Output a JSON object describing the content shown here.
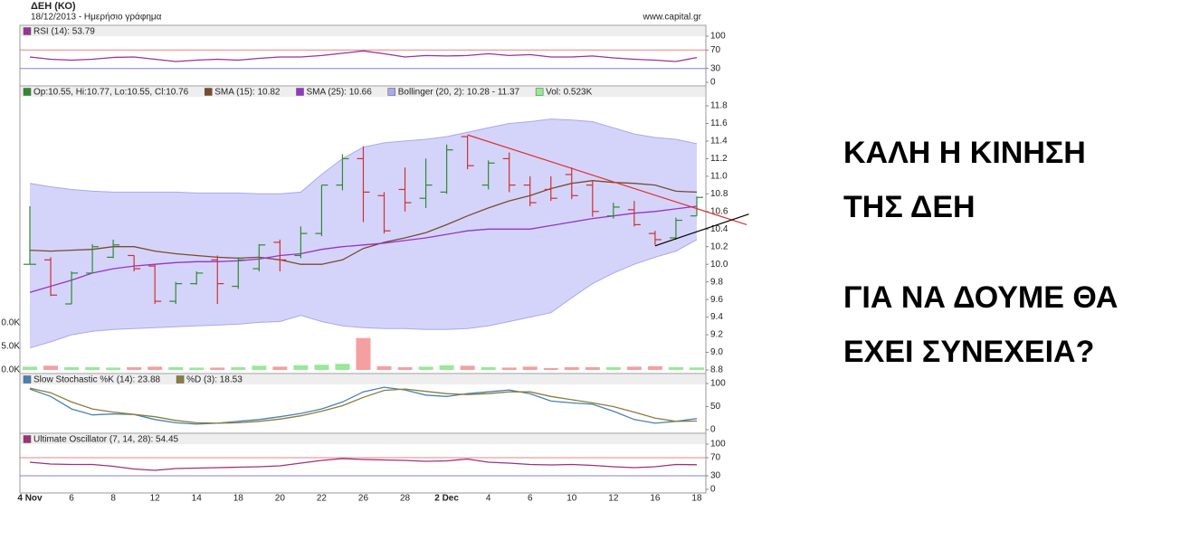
{
  "header": {
    "title": "ΔΕΗ (ΚΟ)",
    "subtitle": "18/12/2013 - Ημερήσιο γράφημα",
    "source": "www.capital.gr"
  },
  "annotations": [
    "ΚΑΛΗ Η ΚΙΝΗΣΗ",
    "ΤΗΣ ΔΕΗ",
    "ΓΙΑ ΝΑ ΔΟΥΜΕ ΘΑ",
    "ΕΧΕΙ ΣΥΝΕΧΕΙΑ?"
  ],
  "chart_data": [
    {
      "type": "line",
      "ylim": [
        0,
        100
      ],
      "yticks": [
        0,
        30,
        70,
        100
      ],
      "ref_lines": [
        {
          "value": 70,
          "color": "#f08080"
        },
        {
          "value": 30,
          "color": "#8080f0"
        }
      ],
      "series": [
        {
          "name": "RSI (14): 53.79",
          "color": "#993399",
          "values": [
            55,
            50,
            48,
            50,
            54,
            55,
            50,
            45,
            48,
            50,
            48,
            52,
            55,
            55,
            58,
            63,
            68,
            62,
            55,
            58,
            57,
            58,
            62,
            58,
            60,
            55,
            55,
            57,
            53,
            50,
            48,
            45,
            53.79
          ]
        }
      ]
    },
    {
      "type": "ohlc",
      "ylim": [
        8.8,
        11.8
      ],
      "yticks": [
        8.8,
        {
          "value": 9,
          "label": "9.0"
        },
        9.2,
        9.4,
        9.6,
        9.8,
        {
          "value": 10,
          "label": "10.0"
        },
        10.2,
        10.4,
        10.6,
        10.8,
        {
          "value": 11,
          "label": "11.0"
        },
        11.2,
        11.4,
        11.6,
        11.8
      ],
      "ohlc": {
        "name": "Op:10.55, Hi:10.77, Lo:10.55, Cl:10.76",
        "up_color": "#2e8b2e",
        "down_color": "#d03030",
        "open": [
          10.0,
          10.05,
          9.55,
          9.9,
          10.08,
          10.1,
          9.98,
          9.58,
          9.78,
          10.05,
          9.75,
          9.95,
          10.25,
          10.1,
          10.35,
          10.9,
          11.2,
          10.78,
          10.85,
          10.75,
          10.82,
          11.45,
          10.9,
          11.2,
          10.9,
          10.85,
          11.02,
          10.9,
          10.55,
          10.62,
          10.35,
          10.3,
          10.55
        ],
        "high": [
          10.66,
          10.08,
          9.92,
          10.23,
          10.28,
          10.1,
          10.0,
          9.8,
          9.92,
          10.1,
          10.08,
          10.23,
          10.28,
          10.43,
          10.9,
          11.25,
          11.34,
          10.82,
          11.1,
          11.2,
          11.36,
          11.46,
          11.18,
          11.27,
          11.0,
          11.0,
          11.1,
          10.95,
          10.7,
          10.72,
          10.38,
          10.53,
          10.77
        ],
        "low": [
          10.0,
          9.64,
          9.55,
          9.9,
          10.07,
          9.92,
          9.55,
          9.55,
          9.77,
          9.55,
          9.72,
          9.92,
          9.92,
          10.07,
          10.32,
          10.84,
          10.48,
          10.35,
          10.6,
          10.64,
          10.8,
          11.08,
          10.85,
          10.82,
          10.66,
          10.72,
          10.74,
          10.54,
          10.52,
          10.43,
          10.22,
          10.28,
          10.55
        ],
        "close": [
          10.0,
          9.65,
          9.9,
          10.2,
          10.22,
          9.95,
          9.58,
          9.78,
          9.9,
          9.78,
          10.05,
          10.22,
          10.05,
          10.35,
          10.9,
          11.2,
          10.82,
          10.38,
          10.7,
          10.9,
          11.3,
          11.12,
          11.15,
          10.9,
          10.7,
          10.75,
          10.78,
          10.6,
          10.65,
          10.45,
          10.28,
          10.5,
          10.76
        ]
      },
      "series": [
        {
          "name": "SMA (15): 10.82",
          "color": "#7b4a2e",
          "values": [
            10.16,
            10.15,
            10.16,
            10.17,
            10.2,
            10.2,
            10.15,
            10.12,
            10.1,
            10.08,
            10.07,
            10.08,
            10.05,
            10.0,
            10.0,
            10.05,
            10.18,
            10.25,
            10.3,
            10.36,
            10.45,
            10.55,
            10.64,
            10.72,
            10.78,
            10.86,
            10.92,
            10.95,
            10.93,
            10.92,
            10.9,
            10.83,
            10.82
          ]
        },
        {
          "name": "SMA (25): 10.66",
          "color": "#9932cc",
          "values": [
            9.68,
            9.75,
            9.82,
            9.9,
            9.95,
            9.98,
            10.0,
            10.02,
            10.03,
            10.03,
            10.04,
            10.06,
            10.1,
            10.12,
            10.17,
            10.2,
            10.22,
            10.24,
            10.27,
            10.3,
            10.34,
            10.38,
            10.4,
            10.4,
            10.4,
            10.44,
            10.48,
            10.52,
            10.55,
            10.58,
            10.6,
            10.63,
            10.66
          ]
        }
      ],
      "bollinger": {
        "name": "Bollinger (20, 2): 10.28 - 11.37",
        "color": "#a8a8f0",
        "fill": "#d4d4fa",
        "upper": [
          10.92,
          10.88,
          10.85,
          10.83,
          10.82,
          10.82,
          10.82,
          10.82,
          10.81,
          10.81,
          10.81,
          10.8,
          10.8,
          10.82,
          11.02,
          11.2,
          11.33,
          11.38,
          11.4,
          11.42,
          11.45,
          11.5,
          11.55,
          11.6,
          11.62,
          11.65,
          11.64,
          11.62,
          11.55,
          11.48,
          11.44,
          11.42,
          11.37
        ],
        "lower": [
          9.05,
          9.12,
          9.2,
          9.24,
          9.26,
          9.27,
          9.28,
          9.29,
          9.3,
          9.31,
          9.32,
          9.34,
          9.35,
          9.42,
          9.35,
          9.3,
          9.28,
          9.27,
          9.27,
          9.26,
          9.26,
          9.27,
          9.3,
          9.35,
          9.4,
          9.45,
          9.62,
          9.78,
          9.9,
          10.0,
          10.08,
          10.15,
          10.28
        ]
      },
      "volume": {
        "name": "Vol: 0.523K",
        "color": "#90ee90",
        "up_color": "#98e898",
        "down_color": "#f4a0a0",
        "ylim": [
          0,
          10
        ],
        "axis_labels": [
          "0.0K",
          "5.0K",
          "0.0K"
        ],
        "values": [
          0.7,
          0.9,
          0.6,
          0.6,
          0.5,
          0.6,
          0.7,
          0.6,
          0.5,
          0.5,
          0.6,
          0.9,
          0.7,
          1.0,
          1.1,
          1.3,
          6.8,
          0.8,
          0.6,
          0.7,
          1.0,
          0.9,
          0.6,
          0.5,
          0.7,
          0.4,
          0.6,
          0.6,
          0.6,
          0.7,
          0.8,
          0.6,
          0.523
        ]
      },
      "trendlines": [
        {
          "color": "#e03030",
          "points": [
            [
              21,
              11.47
            ],
            [
              34.4,
              10.45
            ]
          ]
        },
        {
          "color": "#000000",
          "points": [
            [
              30,
              10.21
            ],
            [
              34.5,
              10.57
            ]
          ]
        }
      ]
    },
    {
      "type": "line",
      "ylim": [
        0,
        100
      ],
      "yticks": [
        0,
        50,
        100
      ],
      "series": [
        {
          "name": "Slow Stochastic %K (14): 23.88",
          "color": "#4682b4",
          "values": [
            88,
            72,
            45,
            32,
            34,
            33,
            22,
            15,
            12,
            14,
            18,
            22,
            28,
            35,
            45,
            60,
            82,
            92,
            86,
            75,
            72,
            78,
            82,
            86,
            78,
            62,
            58,
            55,
            40,
            22,
            14,
            18,
            23.88
          ]
        },
        {
          "name": "%D (3): 18.53",
          "color": "#8b7d3a",
          "values": [
            90,
            80,
            60,
            45,
            38,
            33,
            28,
            20,
            15,
            14,
            15,
            18,
            23,
            30,
            40,
            52,
            70,
            85,
            88,
            83,
            78,
            76,
            78,
            82,
            82,
            72,
            65,
            58,
            50,
            38,
            25,
            18,
            18.53
          ]
        }
      ]
    },
    {
      "type": "line",
      "ylim": [
        0,
        100
      ],
      "yticks": [
        0,
        30,
        70,
        100
      ],
      "ref_lines": [
        {
          "value": 70,
          "color": "#f08080"
        },
        {
          "value": 30,
          "color": "#8080f0"
        }
      ],
      "categories": [
        "4 Nov",
        null,
        "6",
        null,
        "8",
        null,
        "12",
        null,
        "14",
        null,
        "18",
        null,
        "20",
        null,
        "22",
        null,
        "26",
        null,
        "28",
        null,
        "2 Dec",
        null,
        "4",
        null,
        "6",
        null,
        "10",
        null,
        "12",
        null,
        "16",
        null,
        "18"
      ],
      "series": [
        {
          "name": "Ultimate Oscillator (7, 14, 28): 54.45",
          "color": "#a0307a",
          "values": [
            60,
            56,
            55,
            55,
            51,
            45,
            42,
            46,
            47,
            48,
            49,
            50,
            52,
            58,
            64,
            68,
            66,
            65,
            64,
            62,
            63,
            67,
            60,
            58,
            55,
            54,
            55,
            53,
            50,
            48,
            50,
            55,
            54.45
          ]
        }
      ]
    }
  ]
}
